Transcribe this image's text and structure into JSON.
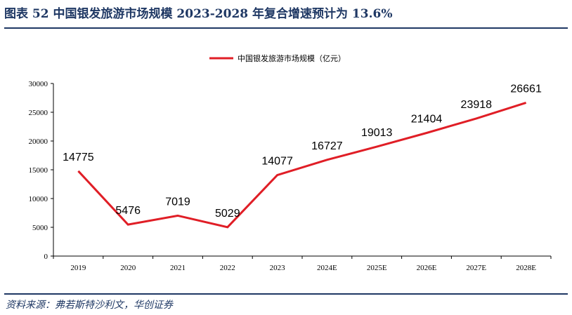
{
  "figure": {
    "title": "图表 52  中国银发旅游市场规模 2023-2028 年复合增速预计为 13.6%",
    "source": "资料来源：弗若斯特沙利文，华创证券"
  },
  "colors": {
    "line": "#e01e26",
    "accent": "#1f3864"
  },
  "chart_data": {
    "type": "line",
    "categories": [
      "2019",
      "2020",
      "2021",
      "2022",
      "2023",
      "2024E",
      "2025E",
      "2026E",
      "2027E",
      "2028E"
    ],
    "series": [
      {
        "name": "中国银发旅游市场规模（亿元）",
        "values": [
          14775,
          5476,
          7019,
          5029,
          14077,
          16727,
          19013,
          21404,
          23918,
          26661
        ]
      }
    ],
    "yticks": [
      0,
      5000,
      10000,
      15000,
      20000,
      25000,
      30000
    ],
    "ylim": [
      0,
      30000
    ],
    "legend_position": "top-center",
    "grid": false
  }
}
